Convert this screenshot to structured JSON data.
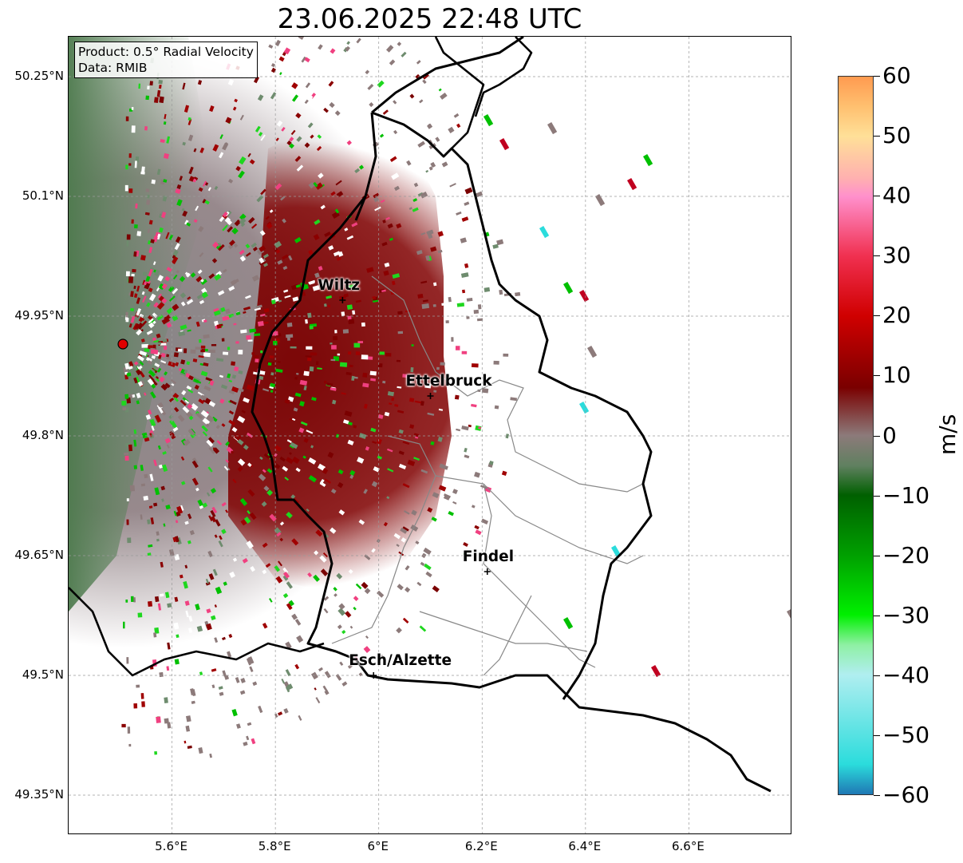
{
  "title": "23.06.2025 22:48 UTC",
  "info": {
    "product": "Product: 0.5° Radial Velocity",
    "data": "Data: RMIB"
  },
  "axes": {
    "lat_ticks": [
      "50.25°N",
      "50.1°N",
      "49.95°N",
      "49.8°N",
      "49.65°N",
      "49.5°N",
      "49.35°N"
    ],
    "lat_values": [
      50.25,
      50.1,
      49.95,
      49.8,
      49.65,
      49.5,
      49.35
    ],
    "lon_ticks": [
      "5.6°E",
      "5.8°E",
      "6°E",
      "6.2°E",
      "6.4°E",
      "6.6°E"
    ],
    "lon_values": [
      5.6,
      5.8,
      6.0,
      6.2,
      6.4,
      6.6
    ],
    "extent": {
      "lon_min": 5.4,
      "lon_max": 6.8,
      "lat_min": 49.3,
      "lat_max": 50.3
    },
    "grid": true
  },
  "cities": [
    {
      "name": "Wiltz",
      "lon": 5.93,
      "lat": 49.97
    },
    {
      "name": "Ettelbruck",
      "lon": 6.1,
      "lat": 49.85
    },
    {
      "name": "Findel",
      "lon": 6.21,
      "lat": 49.63
    },
    {
      "name": "Esch/Alzette",
      "lon": 5.99,
      "lat": 49.5
    }
  ],
  "radar_site": {
    "lon": 5.505,
    "lat": 49.915
  },
  "colorbar": {
    "label": "m/s",
    "min": -60,
    "max": 60,
    "tick_labels": [
      "60",
      "50",
      "40",
      "30",
      "20",
      "10",
      "0",
      "−10",
      "−20",
      "−30",
      "−40",
      "−50",
      "−60"
    ],
    "tick_values": [
      60,
      50,
      40,
      30,
      20,
      10,
      0,
      -10,
      -20,
      -30,
      -40,
      -50,
      -60
    ],
    "colors": [
      "#1f78b4",
      "#2bdcdc",
      "#b0eef0",
      "#8ff0a4",
      "#00f000",
      "#00a000",
      "#006000",
      "#608060",
      "#8c7a7a",
      "#7a0000",
      "#d00000",
      "#f03050",
      "#ff90cc",
      "#ffb0b0",
      "#ffe098",
      "#ffc070",
      "#ff9a50"
    ],
    "color_stops": [
      -60,
      -55,
      -40,
      -35,
      -30,
      -20,
      -10,
      -5,
      0,
      8,
      20,
      30,
      40,
      43,
      50,
      55,
      60
    ]
  }
}
